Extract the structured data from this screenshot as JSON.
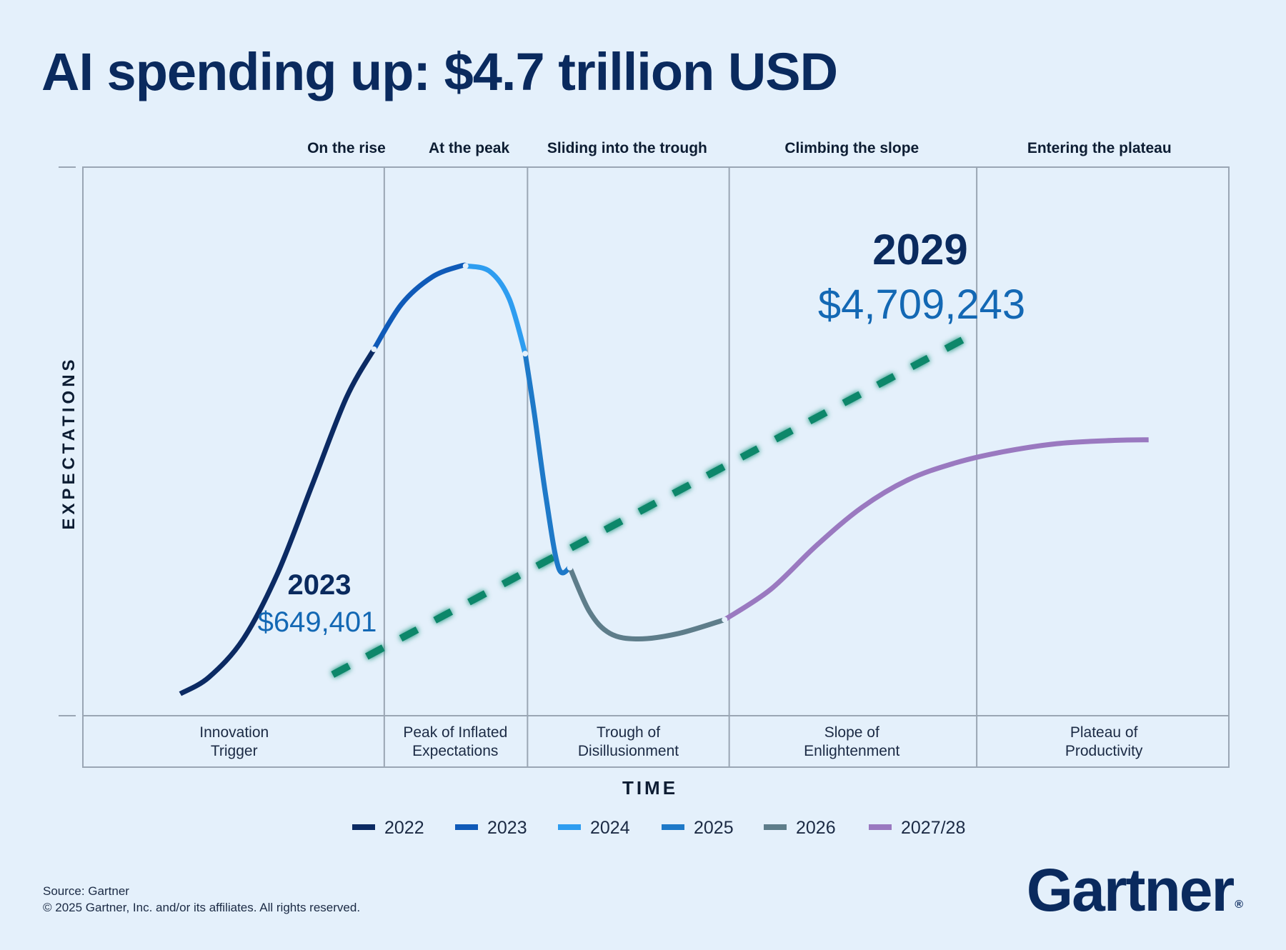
{
  "title": "AI spending up: $4.7 trillion USD",
  "source": "Source: Gartner",
  "copyright": "© 2025 Gartner, Inc. and/or its affiliates. All rights reserved.",
  "logo": {
    "text": "Gartner",
    "mark": "®",
    "color": "#0a2a5e"
  },
  "chart_data": {
    "type": "line",
    "title": "AI spending up: $4.7 trillion USD",
    "xlabel": "TIME",
    "ylabel": "EXPECTATIONS",
    "phases_top": [
      "On the rise",
      "At the peak",
      "Sliding into the trough",
      "Climbing the slope",
      "Entering the plateau"
    ],
    "phases_bottom": [
      [
        "Innovation",
        "Trigger"
      ],
      [
        "Peak of Inflated",
        "Expectations"
      ],
      [
        "Trough of",
        "Disillusionment"
      ],
      [
        "Slope of",
        "Enlightenment"
      ],
      [
        "Plateau of",
        "Productivity"
      ]
    ],
    "x_range": [
      0,
      100
    ],
    "y_range": [
      0,
      100
    ],
    "phase_boundaries": [
      0,
      26.3,
      38.8,
      56.4,
      78.0,
      100
    ],
    "hype_curve": [
      {
        "name": "2022",
        "color": "#0b2a63",
        "points": [
          [
            8.5,
            4
          ],
          [
            11,
            7
          ],
          [
            14,
            14
          ],
          [
            17,
            26
          ],
          [
            20,
            42
          ],
          [
            23,
            58
          ],
          [
            25.4,
            66.8
          ]
        ]
      },
      {
        "name": "2023",
        "color": "#0f5ab8",
        "points": [
          [
            25.4,
            66.8
          ],
          [
            27.8,
            75
          ],
          [
            30.5,
            80
          ],
          [
            33,
            82
          ],
          [
            33.4,
            82
          ]
        ]
      },
      {
        "name": "2024",
        "color": "#2e9df0",
        "points": [
          [
            33.4,
            82
          ],
          [
            35.5,
            81
          ],
          [
            37.2,
            76
          ],
          [
            38.6,
            66
          ]
        ]
      },
      {
        "name": "2025",
        "color": "#1e79c8",
        "points": [
          [
            38.6,
            66
          ],
          [
            39.4,
            55
          ],
          [
            40.4,
            40
          ],
          [
            41.5,
            27
          ],
          [
            42.5,
            27
          ]
        ]
      },
      {
        "name": "2026",
        "color": "#5e7d8a",
        "points": [
          [
            42.5,
            27
          ],
          [
            44.2,
            19
          ],
          [
            46,
            15
          ],
          [
            48.5,
            14
          ],
          [
            52,
            15
          ],
          [
            56,
            17.5
          ]
        ]
      },
      {
        "name": "2027/28",
        "color": "#9a79c0",
        "points": [
          [
            56,
            17.5
          ],
          [
            60,
            23
          ],
          [
            64,
            31
          ],
          [
            68,
            38
          ],
          [
            72,
            43
          ],
          [
            76,
            46
          ],
          [
            80,
            48
          ],
          [
            85,
            49.6
          ],
          [
            90,
            50.2
          ],
          [
            93,
            50.3
          ]
        ]
      }
    ],
    "spending_trend": {
      "color": "#11876a",
      "style": "dashed",
      "start": [
        21.8,
        7.5
      ],
      "end": [
        78.1,
        70
      ]
    },
    "annotations": [
      {
        "year": "2023",
        "value": "$649,401"
      },
      {
        "year": "2029",
        "value": "$4,709,243"
      }
    ],
    "legend": [
      {
        "label": "2022",
        "color": "#0b2a63"
      },
      {
        "label": "2023",
        "color": "#0f5ab8"
      },
      {
        "label": "2024",
        "color": "#2e9df0"
      },
      {
        "label": "2025",
        "color": "#1e79c8"
      },
      {
        "label": "2026",
        "color": "#5e7d8a"
      },
      {
        "label": "2027/28",
        "color": "#9a79c0"
      }
    ],
    "legend_position": "bottom-center",
    "grid": false
  }
}
